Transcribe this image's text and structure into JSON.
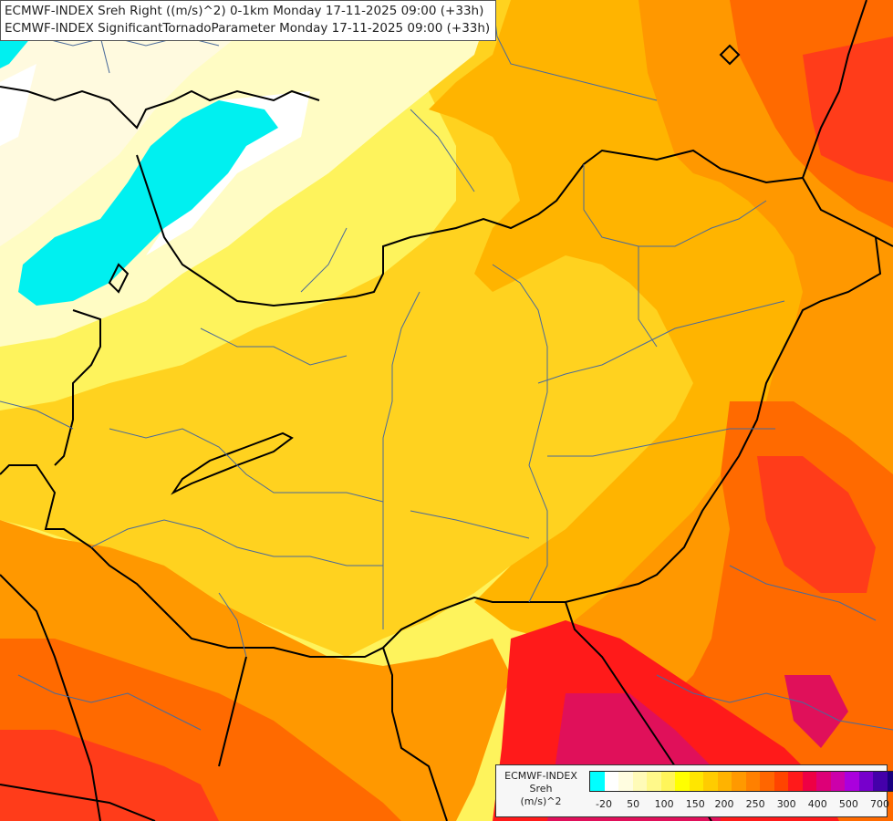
{
  "titles": {
    "line1": "ECMWF-INDEX Sreh Right ((m/s)^2) 0-1km Monday 17-11-2025 09:00 (+33h)",
    "line2": "ECMWF-INDEX SignificantTornadoParameter Monday 17-11-2025 09:00 (+33h)"
  },
  "legend": {
    "line1": "ECMWF-INDEX",
    "line2": "Sreh",
    "line3": "(m/s)^2",
    "colors": [
      "#00ffff",
      "#ffffff",
      "#fffde0",
      "#fffbb8",
      "#fff98a",
      "#fff55a",
      "#ffff00",
      "#ffe600",
      "#ffcc00",
      "#ffb300",
      "#ff9900",
      "#ff8000",
      "#ff6600",
      "#ff4400",
      "#ff1a1a",
      "#ee0044",
      "#dd0077",
      "#cc00aa",
      "#aa00dd",
      "#7700cc",
      "#4400aa",
      "#1a0080"
    ],
    "ticks": [
      {
        "label": "-20",
        "pos": 0.047
      },
      {
        "label": "50",
        "pos": 0.141
      },
      {
        "label": "100",
        "pos": 0.241
      },
      {
        "label": "150",
        "pos": 0.341
      },
      {
        "label": "200",
        "pos": 0.434
      },
      {
        "label": "250",
        "pos": 0.534
      },
      {
        "label": "300",
        "pos": 0.634
      },
      {
        "label": "400",
        "pos": 0.734
      },
      {
        "label": "500",
        "pos": 0.834
      },
      {
        "label": "700",
        "pos": 0.934
      }
    ]
  }
}
